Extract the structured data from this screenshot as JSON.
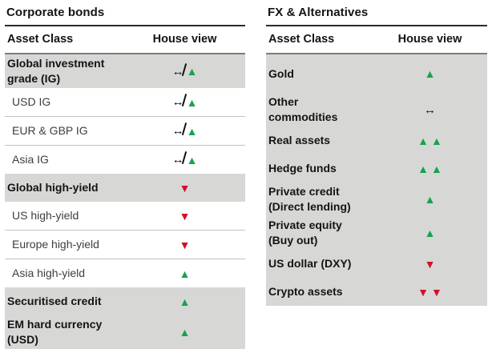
{
  "colors": {
    "up": "#17a24e",
    "down": "#d01126",
    "neutral": "#121212",
    "row_shade": "#d7d7d5"
  },
  "symbols": {
    "up": {
      "glyph": "▲"
    },
    "down": {
      "glyph": "▼"
    },
    "neutral": {
      "glyph": "↔"
    },
    "neutral_struck": {
      "glyph": "↔"
    }
  },
  "tables": [
    {
      "title": "Corporate bonds",
      "columns": {
        "asset_class": "Asset Class",
        "house_view": "House view"
      },
      "rows": [
        {
          "label": "Global investment\ngrade (IG)",
          "emphasis": true,
          "shaded": true,
          "indent": false,
          "view": [
            "neutral_struck",
            "up"
          ]
        },
        {
          "label": "USD IG",
          "emphasis": false,
          "shaded": false,
          "indent": true,
          "view": [
            "neutral_struck",
            "up"
          ]
        },
        {
          "label": "EUR & GBP IG",
          "emphasis": false,
          "shaded": false,
          "indent": true,
          "view": [
            "neutral_struck",
            "up"
          ]
        },
        {
          "label": "Asia IG",
          "emphasis": false,
          "shaded": false,
          "indent": true,
          "view": [
            "neutral_struck",
            "up"
          ]
        },
        {
          "label": "Global high-yield",
          "emphasis": true,
          "shaded": true,
          "indent": false,
          "view": [
            "down"
          ]
        },
        {
          "label": "US high-yield",
          "emphasis": false,
          "shaded": false,
          "indent": true,
          "view": [
            "down"
          ]
        },
        {
          "label": "Europe high-yield",
          "emphasis": false,
          "shaded": false,
          "indent": true,
          "view": [
            "down"
          ]
        },
        {
          "label": "Asia high-yield",
          "emphasis": false,
          "shaded": false,
          "indent": true,
          "view": [
            "up"
          ]
        },
        {
          "label": "Securitised credit",
          "emphasis": true,
          "shaded": true,
          "indent": false,
          "view": [
            "up"
          ]
        },
        {
          "label": "EM hard currency\n(USD)",
          "emphasis": true,
          "shaded": true,
          "indent": false,
          "view": [
            "up"
          ]
        }
      ]
    },
    {
      "title": "FX & Alternatives",
      "columns": {
        "asset_class": "Asset Class",
        "house_view": "House view"
      },
      "rows": [
        {
          "label": "Gold",
          "emphasis": true,
          "shaded": true,
          "indent": false,
          "view": [
            "up"
          ]
        },
        {
          "label": "Other\ncommodities",
          "emphasis": true,
          "shaded": true,
          "indent": false,
          "view": [
            "neutral"
          ]
        },
        {
          "label": "Real assets",
          "emphasis": true,
          "shaded": true,
          "indent": false,
          "view": [
            "up",
            "up"
          ]
        },
        {
          "label": "Hedge funds",
          "emphasis": true,
          "shaded": true,
          "indent": false,
          "view": [
            "up",
            "up"
          ]
        },
        {
          "label": "Private credit\n(Direct lending)",
          "emphasis": true,
          "shaded": true,
          "indent": false,
          "view": [
            "up"
          ]
        },
        {
          "label": "Private equity\n(Buy out)",
          "emphasis": true,
          "shaded": true,
          "indent": false,
          "view": [
            "up"
          ]
        },
        {
          "label": "US dollar (DXY)",
          "emphasis": true,
          "shaded": true,
          "indent": false,
          "view": [
            "down"
          ]
        },
        {
          "label": "Crypto assets",
          "emphasis": true,
          "shaded": true,
          "indent": false,
          "view": [
            "down",
            "down"
          ]
        }
      ]
    }
  ]
}
